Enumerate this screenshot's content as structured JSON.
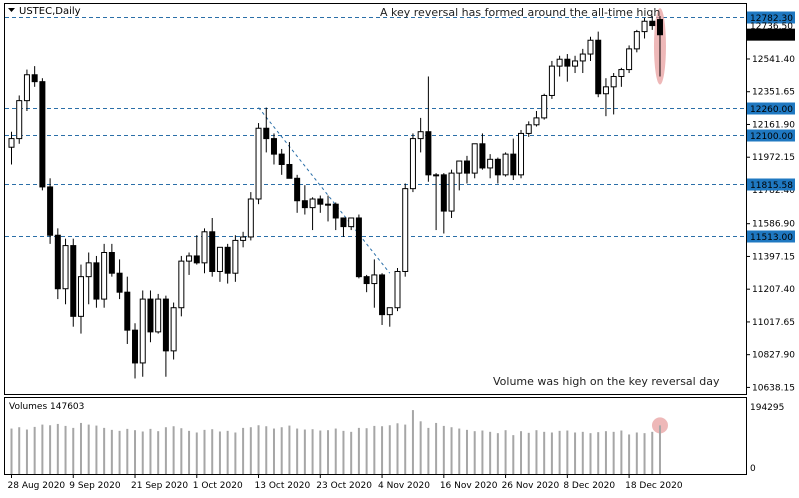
{
  "header": {
    "symbol_label": "USTEC,Daily",
    "menu_icon": "triangle-down-icon"
  },
  "annotations": {
    "top": "A key reversal has formed around the all-time high",
    "bottom": "Volume was high on the key reversal day"
  },
  "volume_panel": {
    "label": "Volumes 147603",
    "scale_max_label": "194295",
    "scale_zero_label": "0"
  },
  "colors": {
    "grid_line": "#2b6fa8",
    "level_label_bg": "#1f78c1",
    "bull_body": "#ffffff",
    "bear_body": "#000000",
    "wick": "#000000",
    "volume_bar": "#a6a6a6",
    "trendline": "#2b6fa8",
    "highlight": "#e8a0a0",
    "price_label_bg": "#000000"
  },
  "chart_data": {
    "type": "candlestick",
    "price_axis": {
      "min": 10600,
      "max": 12860,
      "ticks": [
        "12541.40",
        "12351.65",
        "12161.90",
        "11972.15",
        "11782.40",
        "11586.90",
        "11397.15",
        "11207.40",
        "11017.65",
        "10827.90",
        "10638.15"
      ]
    },
    "levels": [
      {
        "value": 12782.3,
        "label": "12782.30",
        "style": "dashed",
        "label_bg": "#1f78c1"
      },
      {
        "value": 12260.0,
        "label": "12260.00",
        "style": "dashed",
        "label_bg": "#1f78c1"
      },
      {
        "value": 12100.0,
        "label": "12100.00",
        "style": "dashed",
        "label_bg": "#1f78c1"
      },
      {
        "value": 11815.58,
        "label": "11815.58",
        "style": "dashed",
        "label_bg": "#1f78c1"
      },
      {
        "value": 11513.0,
        "label": "11513.00",
        "style": "dashed",
        "label_bg": "#1f78c1"
      }
    ],
    "price_labels": [
      {
        "value": 12736.5,
        "label": "12736.50",
        "style": "plain"
      },
      {
        "value": 12682.4,
        "label": "12682.40",
        "style": "black"
      }
    ],
    "date_labels": [
      "28 Aug 2020",
      "9 Sep 2020",
      "21 Sep 2020",
      "1 Oct 2020",
      "13 Oct 2020",
      "23 Oct 2020",
      "4 Nov 2020",
      "16 Nov 2020",
      "26 Nov 2020",
      "8 Dec 2020",
      "18 Dec 2020"
    ],
    "date_label_indices": [
      0,
      8,
      16,
      24,
      32,
      40,
      48,
      56,
      64,
      72,
      80
    ],
    "candles": [
      [
        12030,
        12120,
        11930,
        12080
      ],
      [
        12080,
        12330,
        12050,
        12300
      ],
      [
        12300,
        12480,
        12240,
        12450
      ],
      [
        12450,
        12500,
        12380,
        12410
      ],
      [
        12410,
        12430,
        11780,
        11800
      ],
      [
        11800,
        11850,
        11470,
        11520
      ],
      [
        11520,
        11560,
        11150,
        11210
      ],
      [
        11210,
        11500,
        11120,
        11460
      ],
      [
        11460,
        11500,
        10990,
        11050
      ],
      [
        11050,
        11350,
        10950,
        11280
      ],
      [
        11280,
        11420,
        11120,
        11360
      ],
      [
        11360,
        11400,
        11100,
        11150
      ],
      [
        11150,
        11470,
        11100,
        11420
      ],
      [
        11420,
        11470,
        11280,
        11300
      ],
      [
        11300,
        11380,
        11150,
        11190
      ],
      [
        11190,
        11280,
        10890,
        10970
      ],
      [
        10970,
        11010,
        10690,
        10780
      ],
      [
        10780,
        11200,
        10700,
        11150
      ],
      [
        11150,
        11200,
        10900,
        10960
      ],
      [
        10960,
        11180,
        10950,
        11150
      ],
      [
        11150,
        11170,
        10700,
        10850
      ],
      [
        10850,
        11130,
        10800,
        11100
      ],
      [
        11100,
        11400,
        11050,
        11370
      ],
      [
        11370,
        11420,
        11290,
        11400
      ],
      [
        11400,
        11520,
        11350,
        11360
      ],
      [
        11360,
        11560,
        11300,
        11540
      ],
      [
        11540,
        11620,
        11280,
        11310
      ],
      [
        11310,
        11450,
        11250,
        11450
      ],
      [
        11450,
        11470,
        11240,
        11300
      ],
      [
        11300,
        11520,
        11250,
        11490
      ],
      [
        11490,
        11540,
        11450,
        11510
      ],
      [
        11510,
        11770,
        11490,
        11730
      ],
      [
        11730,
        12170,
        11700,
        12140
      ],
      [
        12140,
        12260,
        12000,
        12080
      ],
      [
        12080,
        12110,
        11930,
        11990
      ],
      [
        11990,
        12020,
        11870,
        11930
      ],
      [
        11930,
        12060,
        11850,
        11850
      ],
      [
        11850,
        11870,
        11650,
        11720
      ],
      [
        11720,
        11810,
        11640,
        11680
      ],
      [
        11680,
        11740,
        11550,
        11730
      ],
      [
        11730,
        11750,
        11650,
        11700
      ],
      [
        11700,
        11750,
        11600,
        11700
      ],
      [
        11700,
        11710,
        11550,
        11620
      ],
      [
        11620,
        11620,
        11510,
        11570
      ],
      [
        11570,
        11620,
        11550,
        11620
      ],
      [
        11620,
        11640,
        11270,
        11280
      ],
      [
        11280,
        11290,
        11190,
        11240
      ],
      [
        11240,
        11380,
        11100,
        11290
      ],
      [
        11290,
        11300,
        11000,
        11060
      ],
      [
        11060,
        11100,
        10990,
        11100
      ],
      [
        11100,
        11330,
        11080,
        11310
      ],
      [
        11310,
        11820,
        11280,
        11790
      ],
      [
        11790,
        12110,
        11770,
        12080
      ],
      [
        12080,
        12200,
        12000,
        12120
      ],
      [
        12120,
        12440,
        11830,
        11870
      ],
      [
        11870,
        11880,
        11550,
        11870
      ],
      [
        11870,
        11880,
        11530,
        11660
      ],
      [
        11660,
        11900,
        11620,
        11880
      ],
      [
        11880,
        11950,
        11780,
        11950
      ],
      [
        11950,
        11980,
        11820,
        11880
      ],
      [
        11880,
        12050,
        11850,
        12050
      ],
      [
        12050,
        12110,
        11900,
        11910
      ],
      [
        11910,
        11990,
        11850,
        11960
      ],
      [
        11960,
        11970,
        11820,
        11870
      ],
      [
        11870,
        12000,
        11860,
        11990
      ],
      [
        11990,
        12080,
        11840,
        11870
      ],
      [
        11870,
        12130,
        11850,
        12110
      ],
      [
        12110,
        12180,
        12090,
        12160
      ],
      [
        12160,
        12240,
        12150,
        12200
      ],
      [
        12200,
        12340,
        12190,
        12330
      ],
      [
        12330,
        12530,
        12310,
        12500
      ],
      [
        12500,
        12560,
        12440,
        12540
      ],
      [
        12540,
        12570,
        12410,
        12500
      ],
      [
        12500,
        12560,
        12460,
        12530
      ],
      [
        12530,
        12600,
        12460,
        12570
      ],
      [
        12570,
        12670,
        12530,
        12650
      ],
      [
        12650,
        12700,
        12320,
        12340
      ],
      [
        12340,
        12430,
        12210,
        12380
      ],
      [
        12380,
        12460,
        12220,
        12440
      ],
      [
        12440,
        12490,
        12380,
        12480
      ],
      [
        12480,
        12620,
        12460,
        12600
      ],
      [
        12600,
        12710,
        12580,
        12700
      ],
      [
        12700,
        12780,
        12660,
        12760
      ],
      [
        12760,
        12790,
        12710,
        12735
      ],
      [
        12770,
        12790,
        12440,
        12682
      ]
    ],
    "volume_scale_max": 194295,
    "volumes": [
      138000,
      142000,
      135000,
      143000,
      150000,
      148000,
      152000,
      146000,
      140000,
      155000,
      150000,
      147000,
      140000,
      134000,
      131000,
      137000,
      133000,
      129000,
      137000,
      130000,
      142000,
      145000,
      139000,
      131000,
      126000,
      134000,
      136000,
      129000,
      131000,
      126000,
      140000,
      142000,
      148000,
      145000,
      138000,
      142000,
      147000,
      138000,
      135000,
      136000,
      132000,
      133000,
      138000,
      131000,
      128000,
      140000,
      139000,
      146000,
      145000,
      148000,
      154000,
      150000,
      194000,
      160000,
      140000,
      155000,
      146000,
      142000,
      138000,
      134000,
      130000,
      132000,
      128000,
      124000,
      133000,
      118000,
      130000,
      125000,
      133000,
      128000,
      126000,
      131000,
      132000,
      126000,
      128000,
      124000,
      127000,
      130000,
      128000,
      132000,
      120000,
      126000,
      124000,
      128000,
      147603
    ],
    "highlights": [
      {
        "index": 84,
        "panel": "price"
      },
      {
        "index": 84,
        "panel": "volume"
      }
    ],
    "trendline": {
      "from": {
        "index": 32,
        "value": 12260
      },
      "to": {
        "index": 49,
        "value": 11300
      },
      "style": "dashed"
    }
  }
}
